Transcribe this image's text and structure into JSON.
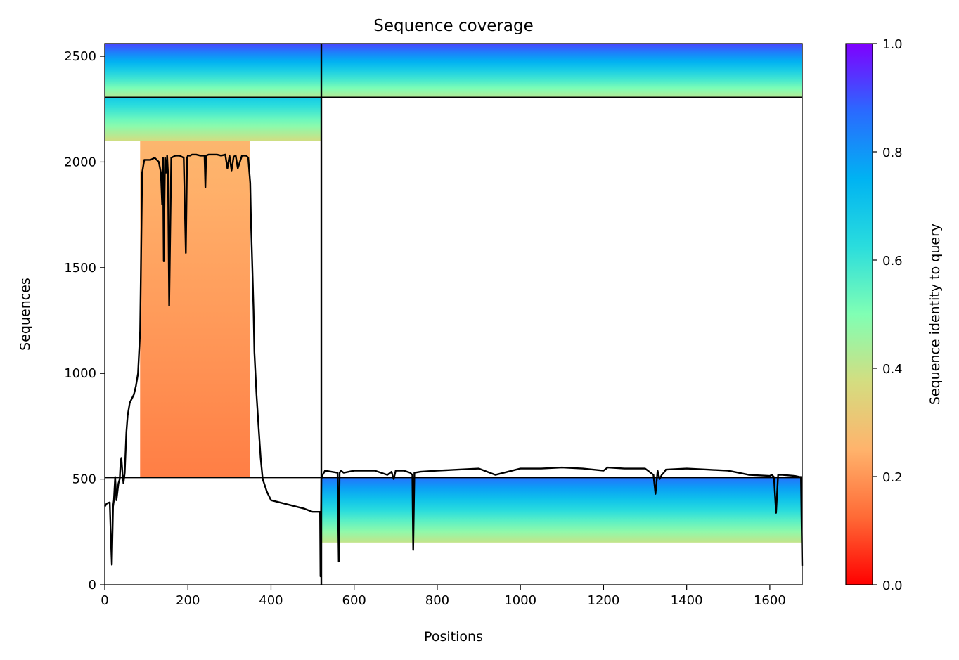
{
  "chart_data": {
    "type": "heatmap",
    "title": "Sequence coverage",
    "xlabel": "Positions",
    "ylabel": "Sequences",
    "xlim": [
      0,
      1678
    ],
    "ylim": [
      0,
      2560
    ],
    "x_ticks": [
      0,
      200,
      400,
      600,
      800,
      1000,
      1200,
      1400,
      1600
    ],
    "y_ticks": [
      0,
      500,
      1000,
      1500,
      2000,
      2500
    ],
    "colorbar": {
      "label": "Sequence identity to query",
      "range": [
        0,
        1
      ],
      "ticks": [
        "0.0",
        "0.2",
        "0.4",
        "0.6",
        "0.8",
        "1.0"
      ],
      "colormap": "rainbow",
      "stops": [
        "#ff0000",
        "#ff6a36",
        "#ffb36c",
        "#d4dd80",
        "#80ffb4",
        "#2adddd",
        "#00b3f2",
        "#2a6aff",
        "#7f00ff"
      ]
    },
    "separators": {
      "x": [
        521
      ],
      "y": [
        508,
        2305
      ]
    },
    "blocks": [
      {
        "x": [
          0,
          521
        ],
        "y": [
          2305,
          2560
        ],
        "identity_bottom": 0.42,
        "identity_top": 0.92
      },
      {
        "x": [
          521,
          1678
        ],
        "y": [
          2305,
          2560
        ],
        "identity_bottom": 0.42,
        "identity_top": 0.92
      },
      {
        "x": [
          0,
          521
        ],
        "y": [
          2100,
          2305
        ],
        "identity_bottom": 0.38,
        "identity_top": 0.68
      },
      {
        "x": [
          85,
          350
        ],
        "y": [
          508,
          2100
        ],
        "identity_bottom": 0.16,
        "identity_top": 0.26
      },
      {
        "x": [
          521,
          1678
        ],
        "y": [
          200,
          508
        ],
        "identity_bottom": 0.4,
        "identity_top": 0.86
      }
    ],
    "coverage_line": {
      "x": [
        0,
        5,
        12,
        15,
        17,
        20,
        22,
        25,
        28,
        30,
        33,
        36,
        38,
        40,
        43,
        45,
        48,
        52,
        55,
        60,
        65,
        70,
        75,
        80,
        85,
        90,
        95,
        100,
        110,
        120,
        130,
        135,
        138,
        140,
        142,
        145,
        148,
        150,
        152,
        155,
        160,
        170,
        180,
        190,
        195,
        198,
        200,
        205,
        210,
        220,
        230,
        240,
        242,
        244,
        250,
        260,
        270,
        280,
        290,
        295,
        300,
        305,
        310,
        315,
        320,
        330,
        340,
        345,
        350,
        352,
        355,
        358,
        360,
        365,
        370,
        375,
        380,
        390,
        400,
        420,
        440,
        460,
        480,
        500,
        518,
        519,
        521,
        524,
        530,
        545,
        560,
        563,
        565,
        568,
        575,
        600,
        650,
        680,
        690,
        695,
        700,
        720,
        735,
        740,
        742,
        745,
        760,
        800,
        850,
        900,
        940,
        1000,
        1050,
        1100,
        1150,
        1200,
        1210,
        1250,
        1300,
        1320,
        1325,
        1330,
        1335,
        1340,
        1345,
        1350,
        1400,
        1450,
        1500,
        1550,
        1600,
        1605,
        1610,
        1615,
        1620,
        1630,
        1660,
        1672,
        1675,
        1678
      ],
      "y": [
        370,
        385,
        390,
        200,
        95,
        370,
        400,
        510,
        400,
        430,
        480,
        500,
        580,
        600,
        520,
        480,
        530,
        720,
        800,
        860,
        880,
        900,
        940,
        1000,
        1200,
        1950,
        2010,
        2010,
        2010,
        2020,
        2000,
        1950,
        1800,
        2020,
        1530,
        2020,
        1950,
        2030,
        1950,
        1320,
        2020,
        2030,
        2030,
        2020,
        1570,
        2020,
        2030,
        2030,
        2035,
        2035,
        2030,
        2030,
        1880,
        2030,
        2035,
        2035,
        2035,
        2030,
        2035,
        1970,
        2030,
        1960,
        2025,
        2030,
        1970,
        2030,
        2030,
        2020,
        1900,
        1700,
        1500,
        1300,
        1100,
        900,
        750,
        600,
        500,
        440,
        400,
        390,
        380,
        370,
        360,
        345,
        345,
        40,
        500,
        520,
        540,
        535,
        530,
        110,
        530,
        540,
        530,
        540,
        540,
        520,
        535,
        500,
        540,
        540,
        530,
        520,
        165,
        530,
        535,
        540,
        545,
        550,
        520,
        550,
        550,
        555,
        550,
        540,
        555,
        550,
        550,
        520,
        430,
        540,
        500,
        520,
        530,
        545,
        550,
        545,
        540,
        520,
        515,
        520,
        510,
        340,
        520,
        520,
        515,
        510,
        510,
        90
      ]
    }
  }
}
